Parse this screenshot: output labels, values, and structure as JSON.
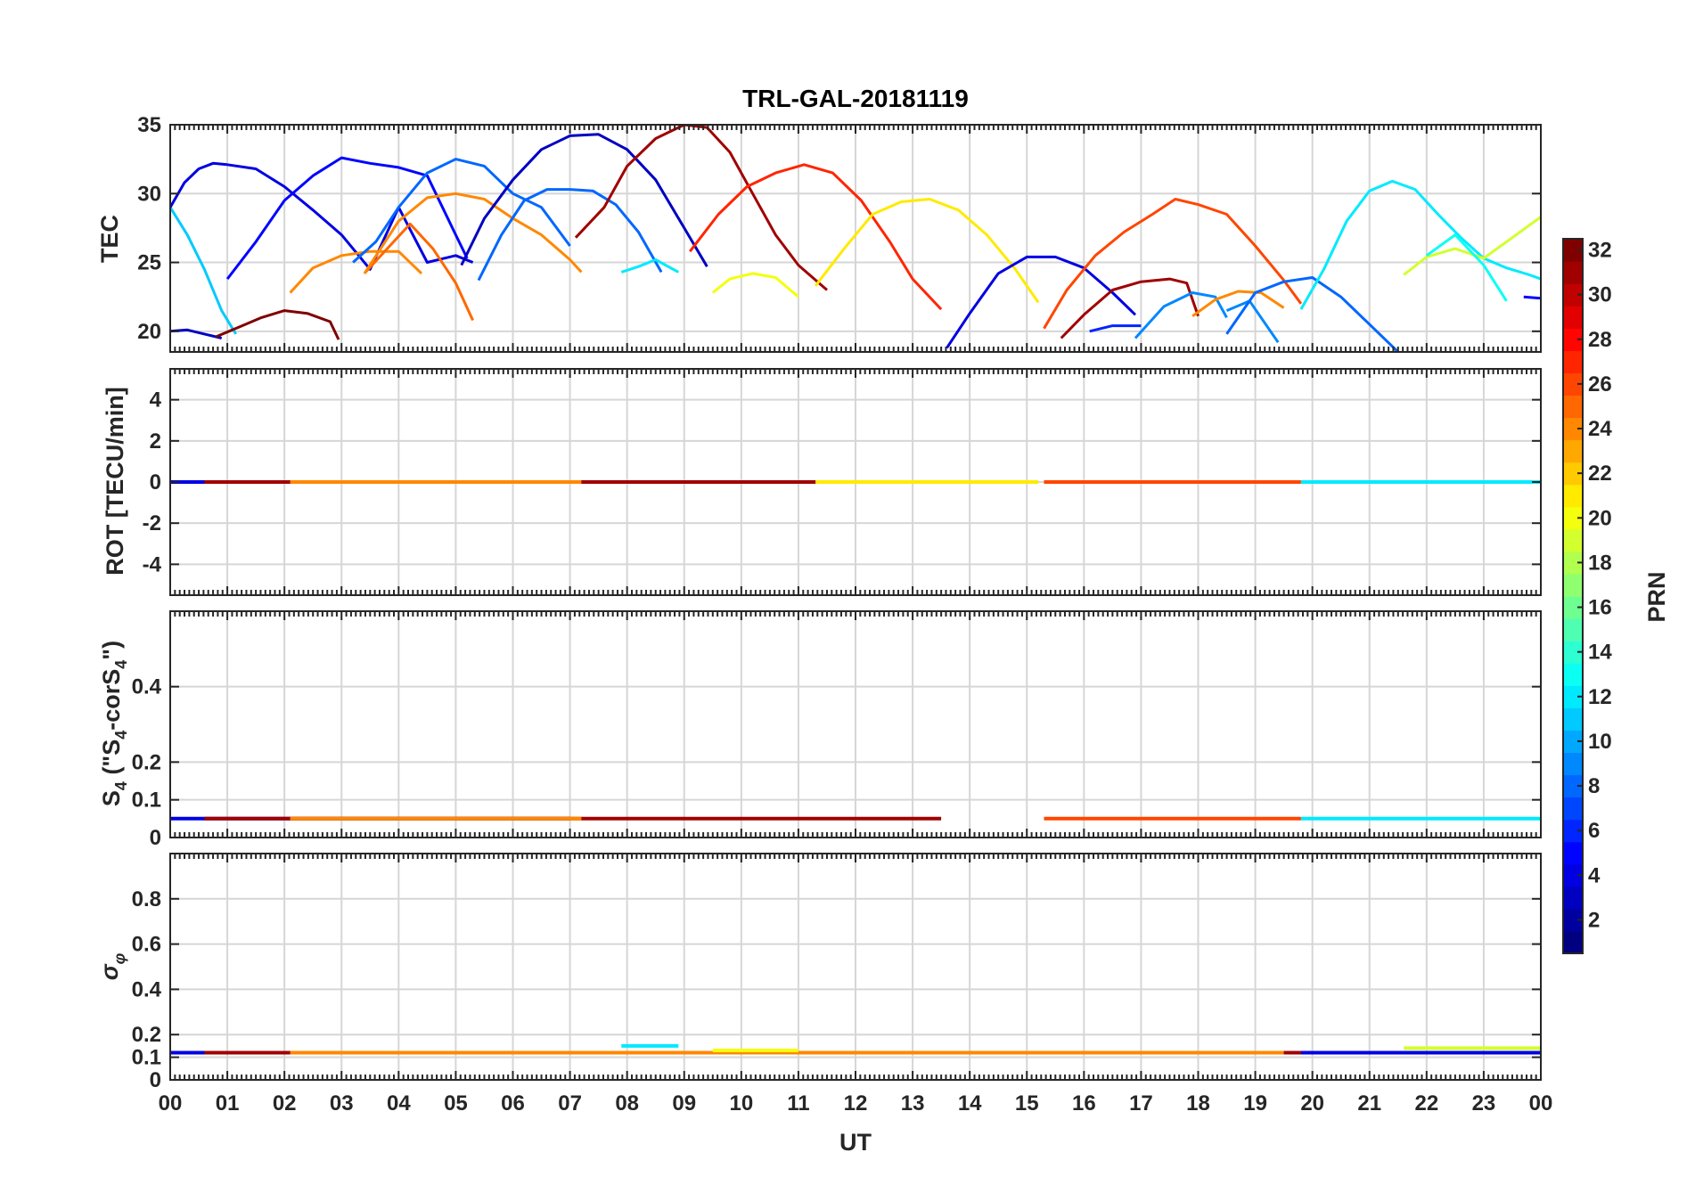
{
  "chart_data": {
    "type": "line",
    "title": "TRL-GAL-20181119",
    "xlabel": "UT",
    "xlim": [
      0,
      24
    ],
    "x_ticks": [
      0,
      1,
      2,
      3,
      4,
      5,
      6,
      7,
      8,
      9,
      10,
      11,
      12,
      13,
      14,
      15,
      16,
      17,
      18,
      19,
      20,
      21,
      22,
      23,
      24
    ],
    "x_tick_labels": [
      "00",
      "01",
      "02",
      "03",
      "04",
      "05",
      "06",
      "07",
      "08",
      "09",
      "10",
      "11",
      "12",
      "13",
      "14",
      "15",
      "16",
      "17",
      "18",
      "19",
      "20",
      "21",
      "22",
      "23",
      "00"
    ],
    "grid": true,
    "colormap": "jet",
    "colorbar": {
      "label": "PRN",
      "range": [
        1,
        32
      ],
      "ticks": [
        2,
        4,
        6,
        8,
        10,
        12,
        14,
        16,
        18,
        20,
        22,
        24,
        26,
        28,
        30,
        32
      ]
    },
    "panels": [
      {
        "id": "tec",
        "ylabel": "TEC",
        "ylim": [
          18.5,
          35
        ],
        "yticks": [
          20,
          25,
          30,
          35
        ],
        "series": [
          {
            "name": "PRN 11",
            "prn": 11,
            "x": [
              0.0,
              0.3,
              0.6,
              0.9,
              1.15
            ],
            "y": [
              29.0,
              27.0,
              24.5,
              21.5,
              19.8
            ]
          },
          {
            "name": "PRN 4",
            "prn": 4,
            "x": [
              0.0,
              0.25,
              0.5,
              0.75,
              1.0
            ],
            "y": [
              29.0,
              30.8,
              31.8,
              32.2,
              32.1
            ]
          },
          {
            "name": "PRN 4b",
            "prn": 4,
            "x": [
              1.0,
              1.5,
              2.0,
              2.5,
              3.0,
              3.5,
              4.0,
              4.5,
              5.0,
              5.3
            ],
            "y": [
              32.1,
              31.8,
              30.5,
              28.8,
              27.0,
              24.5,
              29.0,
              25.0,
              25.5,
              25.0
            ]
          },
          {
            "name": "PRN 3",
            "prn": 3,
            "x": [
              0.0,
              0.3,
              0.6,
              0.9
            ],
            "y": [
              20.0,
              20.1,
              19.8,
              19.5
            ]
          },
          {
            "name": "PRN 32",
            "prn": 32,
            "x": [
              0.8,
              1.2,
              1.6,
              2.0,
              2.4,
              2.8,
              2.95
            ],
            "y": [
              19.6,
              20.3,
              21.0,
              21.5,
              21.3,
              20.7,
              19.4
            ]
          },
          {
            "name": "PRN 5",
            "prn": 5,
            "x": [
              1.0,
              1.5,
              2.0,
              2.5,
              3.0,
              3.5,
              4.0,
              4.5,
              5.0,
              5.2
            ],
            "y": [
              23.8,
              26.5,
              29.5,
              31.3,
              32.6,
              32.2,
              31.9,
              31.3,
              27.0,
              25.3
            ]
          },
          {
            "name": "PRN 24",
            "prn": 24,
            "x": [
              2.1,
              2.5,
              3.0,
              3.5,
              4.0,
              4.4
            ],
            "y": [
              22.8,
              24.6,
              25.5,
              25.8,
              25.8,
              24.2
            ]
          },
          {
            "name": "PRN 8",
            "prn": 8,
            "x": [
              3.2,
              3.6,
              4.0,
              4.5,
              5.0,
              5.5,
              6.0,
              6.5,
              7.0
            ],
            "y": [
              25.0,
              26.5,
              29.0,
              31.5,
              32.5,
              32.0,
              30.0,
              29.0,
              26.2
            ]
          },
          {
            "name": "PRN 25",
            "prn": 25,
            "x": [
              3.4,
              3.8,
              4.2,
              4.6,
              5.0,
              5.3
            ],
            "y": [
              24.2,
              26.0,
              27.8,
              26.0,
              23.5,
              20.8
            ]
          },
          {
            "name": "PRN 24b",
            "prn": 24,
            "x": [
              3.4,
              4.0,
              4.5,
              5.0,
              5.5,
              6.0,
              6.5,
              7.0,
              7.2
            ],
            "y": [
              24.2,
              28.0,
              29.7,
              30.0,
              29.6,
              28.2,
              27.0,
              25.2,
              24.3
            ]
          },
          {
            "name": "PRN 3b",
            "prn": 3,
            "x": [
              5.1,
              5.5,
              6.0,
              6.5,
              7.0,
              7.5,
              8.0,
              8.5,
              9.0,
              9.4
            ],
            "y": [
              24.8,
              28.2,
              31.0,
              33.2,
              34.2,
              34.3,
              33.2,
              31.0,
              27.5,
              24.7
            ]
          },
          {
            "name": "PRN 8b",
            "prn": 8,
            "x": [
              5.4,
              5.8,
              6.2,
              6.6,
              7.0,
              7.4,
              7.8,
              8.2,
              8.6
            ],
            "y": [
              23.7,
              27.0,
              29.5,
              30.3,
              30.3,
              30.2,
              29.2,
              27.2,
              24.3
            ]
          },
          {
            "name": "PRN 12",
            "prn": 12,
            "x": [
              7.9,
              8.2,
              8.5,
              8.9
            ],
            "y": [
              24.3,
              24.7,
              25.2,
              24.3
            ]
          },
          {
            "name": "PRN 31",
            "prn": 31,
            "x": [
              7.1,
              7.6,
              8.0,
              8.5,
              9.0,
              9.4,
              9.8,
              10.2,
              10.6,
              11.0,
              11.5
            ],
            "y": [
              26.8,
              29.0,
              32.0,
              34.0,
              35.0,
              34.8,
              33.0,
              30.0,
              27.0,
              24.8,
              23.0
            ]
          },
          {
            "name": "PRN 27",
            "prn": 27,
            "x": [
              9.1,
              9.6,
              10.1,
              10.6,
              11.1,
              11.6,
              12.1,
              12.6,
              13.0,
              13.5
            ],
            "y": [
              25.8,
              28.5,
              30.5,
              31.5,
              32.1,
              31.5,
              29.5,
              26.5,
              23.8,
              21.6
            ]
          },
          {
            "name": "PRN 20",
            "prn": 20,
            "x": [
              9.5,
              9.8,
              10.2,
              10.6,
              11.0
            ],
            "y": [
              22.8,
              23.8,
              24.2,
              23.9,
              22.5
            ]
          },
          {
            "name": "PRN 21",
            "prn": 21,
            "x": [
              11.3,
              11.8,
              12.3,
              12.8,
              13.3,
              13.8,
              14.3,
              14.8,
              15.2
            ],
            "y": [
              23.3,
              26.0,
              28.5,
              29.4,
              29.6,
              28.8,
              27.0,
              24.5,
              22.1
            ]
          },
          {
            "name": "PRN 4c",
            "prn": 4,
            "x": [
              13.6,
              14.0,
              14.5,
              15.0,
              15.5,
              16.0,
              16.5,
              16.9
            ],
            "y": [
              18.8,
              21.3,
              24.2,
              25.4,
              25.4,
              24.6,
              22.8,
              21.2
            ]
          },
          {
            "name": "PRN 26",
            "prn": 26,
            "x": [
              15.3,
              15.7,
              16.2,
              16.7,
              17.2,
              17.6,
              18.0,
              18.5,
              19.0,
              19.5,
              19.8
            ],
            "y": [
              20.2,
              23.0,
              25.5,
              27.2,
              28.5,
              29.6,
              29.2,
              28.5,
              26.2,
              23.7,
              22.0
            ]
          },
          {
            "name": "PRN 31b",
            "prn": 31,
            "x": [
              15.6,
              16.0,
              16.5,
              17.0,
              17.5,
              17.8,
              18.0
            ],
            "y": [
              19.5,
              21.2,
              23.0,
              23.6,
              23.8,
              23.5,
              21.1
            ]
          },
          {
            "name": "PRN 6",
            "prn": 6,
            "x": [
              16.1,
              16.5,
              17.0
            ],
            "y": [
              20.0,
              20.4,
              20.4
            ]
          },
          {
            "name": "PRN 9",
            "prn": 9,
            "x": [
              16.9,
              17.4,
              17.9,
              18.3,
              18.5
            ],
            "y": [
              19.5,
              21.8,
              22.8,
              22.5,
              21.0
            ]
          },
          {
            "name": "PRN 24c",
            "prn": 24,
            "x": [
              17.9,
              18.3,
              18.7,
              19.1,
              19.5
            ],
            "y": [
              21.1,
              22.3,
              22.9,
              22.8,
              21.7
            ]
          },
          {
            "name": "PRN 9b",
            "prn": 9,
            "x": [
              18.5,
              18.9,
              19.4
            ],
            "y": [
              21.5,
              22.2,
              19.2
            ]
          },
          {
            "name": "PRN 8c",
            "prn": 8,
            "x": [
              18.5,
              19.0,
              19.5,
              20.0,
              20.5,
              21.0,
              21.5
            ],
            "y": [
              19.8,
              22.8,
              23.6,
              23.9,
              22.5,
              20.5,
              18.5
            ]
          },
          {
            "name": "PRN 12b",
            "prn": 12,
            "x": [
              19.8,
              20.2,
              20.6,
              21.0,
              21.4,
              21.8,
              22.2,
              22.6,
              23.0,
              23.4,
              23.8,
              24.0
            ],
            "y": [
              21.6,
              24.5,
              28.0,
              30.2,
              30.9,
              30.3,
              28.5,
              26.8,
              25.3,
              24.6,
              24.1,
              23.8
            ]
          },
          {
            "name": "PRN 19",
            "prn": 19,
            "x": [
              21.6,
              22.0,
              22.5,
              23.0,
              23.5,
              24.0
            ],
            "y": [
              24.1,
              25.4,
              26.0,
              25.3,
              26.8,
              28.3
            ]
          },
          {
            "name": "PRN 13",
            "prn": 13,
            "x": [
              22.0,
              22.5,
              23.0,
              23.4
            ],
            "y": [
              25.5,
              27.0,
              24.8,
              22.2
            ]
          },
          {
            "name": "PRN 5b",
            "prn": 5,
            "x": [
              23.7,
              24.0
            ],
            "y": [
              22.5,
              22.4
            ]
          }
        ]
      },
      {
        "id": "rot",
        "ylabel": "ROT [TECU/min]",
        "ylim": [
          -5.5,
          5.5
        ],
        "yticks": [
          -4,
          -2,
          0,
          2,
          4
        ],
        "series": [
          {
            "name": "PRN 4",
            "prn": 4,
            "x": [
              0,
              6.8
            ],
            "y": [
              0,
              0
            ]
          },
          {
            "name": "PRN 31",
            "prn": 31,
            "x": [
              0.6,
              13.5
            ],
            "y": [
              0,
              0
            ]
          },
          {
            "name": "PRN 24",
            "prn": 24,
            "x": [
              2.1,
              7.2
            ],
            "y": [
              0,
              0
            ]
          },
          {
            "name": "PRN 21",
            "prn": 21,
            "x": [
              11.3,
              15.2
            ],
            "y": [
              0,
              0
            ]
          },
          {
            "name": "PRN 26",
            "prn": 26,
            "x": [
              15.3,
              19.8
            ],
            "y": [
              0,
              0
            ]
          },
          {
            "name": "PRN 12",
            "prn": 12,
            "x": [
              19.8,
              24.0
            ],
            "y": [
              0,
              0
            ]
          }
        ]
      },
      {
        "id": "s4",
        "ylabel": "S4 (\"S4-corS4\")",
        "ylim": [
          0,
          0.6
        ],
        "yticks": [
          0,
          0.1,
          0.2,
          0.4
        ],
        "series": [
          {
            "name": "PRN 4",
            "prn": 4,
            "x": [
              0,
              7
            ],
            "y": [
              0.05,
              0.05
            ]
          },
          {
            "name": "PRN 31",
            "prn": 31,
            "x": [
              0.6,
              13.5
            ],
            "y": [
              0.05,
              0.05
            ]
          },
          {
            "name": "PRN 24",
            "prn": 24,
            "x": [
              2.1,
              7.2
            ],
            "y": [
              0.05,
              0.05
            ]
          },
          {
            "name": "PRN 26",
            "prn": 26,
            "x": [
              15.3,
              19.8
            ],
            "y": [
              0.05,
              0.05
            ]
          },
          {
            "name": "PRN 12",
            "prn": 12,
            "x": [
              19.8,
              24.0
            ],
            "y": [
              0.05,
              0.05
            ]
          }
        ]
      },
      {
        "id": "sigma_phi",
        "ylabel": "σφ",
        "ylim": [
          0,
          1.0
        ],
        "yticks": [
          0,
          0.1,
          0.2,
          0.4,
          0.6,
          0.8
        ],
        "series": [
          {
            "name": "PRN 4",
            "prn": 4,
            "x": [
              0,
              24
            ],
            "y": [
              0.12,
              0.12
            ]
          },
          {
            "name": "PRN 31",
            "prn": 31,
            "x": [
              0.6,
              19.8
            ],
            "y": [
              0.12,
              0.12
            ]
          },
          {
            "name": "PRN 24",
            "prn": 24,
            "x": [
              2.1,
              19.5
            ],
            "y": [
              0.12,
              0.12
            ]
          },
          {
            "name": "PRN 12",
            "prn": 12,
            "x": [
              7.9,
              8.9
            ],
            "y": [
              0.15,
              0.15
            ]
          },
          {
            "name": "PRN 20",
            "prn": 20,
            "x": [
              9.5,
              11.0
            ],
            "y": [
              0.13,
              0.13
            ]
          },
          {
            "name": "PRN 19",
            "prn": 19,
            "x": [
              21.6,
              24.0
            ],
            "y": [
              0.14,
              0.14
            ]
          }
        ]
      }
    ]
  }
}
